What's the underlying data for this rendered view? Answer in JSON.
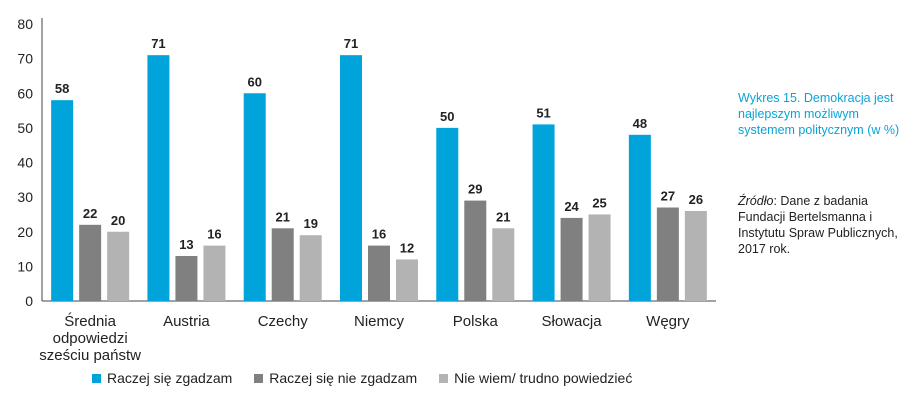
{
  "chart_data": {
    "type": "bar",
    "categories": [
      [
        "Średnia",
        "odpowiedzi",
        "sześciu państw"
      ],
      [
        "Austria"
      ],
      [
        "Czechy"
      ],
      [
        "Niemcy"
      ],
      [
        "Polska"
      ],
      [
        "Słowacja"
      ],
      [
        "Węgry"
      ]
    ],
    "series": [
      {
        "name": "Raczej się zgadzam",
        "values": [
          58,
          71,
          60,
          71,
          50,
          51,
          48
        ],
        "color": "#00a3da"
      },
      {
        "name": "Raczej się nie zgadzam",
        "values": [
          22,
          13,
          21,
          16,
          29,
          24,
          27
        ],
        "color": "#808080"
      },
      {
        "name": "Nie wiem/ trudno powiedzieć",
        "values": [
          20,
          16,
          19,
          12,
          21,
          25,
          26
        ],
        "color": "#b3b3b3"
      }
    ],
    "ylim": [
      0,
      80
    ],
    "yticks": [
      "0",
      "10",
      "20",
      "30",
      "40",
      "50",
      "60",
      "70",
      "80"
    ],
    "legend_position": "bottom",
    "grid": false
  },
  "side_title": "Wykres 15. Demokracja jest najlepszym możliwym systemem politycznym (w %)",
  "side_source_key": "Źródło",
  "side_source_text": ": Dane z badania Fundacji Bertelsmanna i Instytutu Spraw Publicznych, 2017 rok."
}
